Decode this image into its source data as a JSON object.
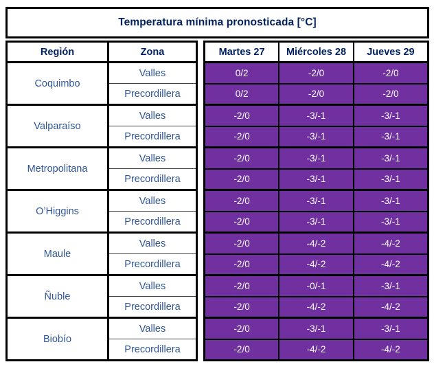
{
  "title": "Temperatura mínima pronosticada [°C]",
  "headers": {
    "region": "Región",
    "zona": "Zona",
    "days": [
      "Martes 27",
      "Miércoles 28",
      "Jueves 29"
    ]
  },
  "rows": [
    {
      "region": "Coquimbo",
      "zones": [
        {
          "zona": "Valles",
          "values": [
            "0/2",
            "-2/0",
            "-2/0"
          ]
        },
        {
          "zona": "Precordillera",
          "values": [
            "0/2",
            "-2/0",
            "-2/0"
          ]
        }
      ]
    },
    {
      "region": "Valparaíso",
      "zones": [
        {
          "zona": "Valles",
          "values": [
            "-2/0",
            "-3/-1",
            "-3/-1"
          ]
        },
        {
          "zona": "Precordillera",
          "values": [
            "-2/0",
            "-3/-1",
            "-3/-1"
          ]
        }
      ]
    },
    {
      "region": "Metropolitana",
      "zones": [
        {
          "zona": "Valles",
          "values": [
            "-2/0",
            "-3/-1",
            "-3/-1"
          ]
        },
        {
          "zona": "Precordillera",
          "values": [
            "-2/0",
            "-3/-1",
            "-3/-1"
          ]
        }
      ]
    },
    {
      "region": "O’Higgins",
      "zones": [
        {
          "zona": "Valles",
          "values": [
            "-2/0",
            "-3/-1",
            "-3/-1"
          ]
        },
        {
          "zona": "Precordillera",
          "values": [
            "-2/0",
            "-3/-1",
            "-3/-1"
          ]
        }
      ]
    },
    {
      "region": "Maule",
      "zones": [
        {
          "zona": "Valles",
          "values": [
            "-2/0",
            "-4/-2",
            "-4/-2"
          ]
        },
        {
          "zona": "Precordillera",
          "values": [
            "-2/0",
            "-4/-2",
            "-4/-2"
          ]
        }
      ]
    },
    {
      "region": "Ñuble",
      "zones": [
        {
          "zona": "Valles",
          "values": [
            "-2/0",
            "-0/-1",
            "-3/-1"
          ]
        },
        {
          "zona": "Precordillera",
          "values": [
            "-2/0",
            "-4/-2",
            "-4/-2"
          ]
        }
      ]
    },
    {
      "region": "Biobío",
      "zones": [
        {
          "zona": "Valles",
          "values": [
            "-2/0",
            "-3/-1",
            "-3/-1"
          ]
        },
        {
          "zona": "Precordillera",
          "values": [
            "-2/0",
            "-4/-2",
            "-4/-2"
          ]
        }
      ]
    }
  ],
  "colors": {
    "cell_fill": "#7030A0",
    "title_text": "#00205F",
    "label_text": "#2F5597",
    "value_text": "#FFFFFF",
    "border": "#000000"
  },
  "chart_data": {
    "type": "table",
    "title": "Temperatura mínima pronosticada [°C]",
    "columns": [
      "Región",
      "Zona",
      "Martes 27",
      "Miércoles 28",
      "Jueves 29"
    ],
    "rows": [
      [
        "Coquimbo",
        "Valles",
        "0/2",
        "-2/0",
        "-2/0"
      ],
      [
        "Coquimbo",
        "Precordillera",
        "0/2",
        "-2/0",
        "-2/0"
      ],
      [
        "Valparaíso",
        "Valles",
        "-2/0",
        "-3/-1",
        "-3/-1"
      ],
      [
        "Valparaíso",
        "Precordillera",
        "-2/0",
        "-3/-1",
        "-3/-1"
      ],
      [
        "Metropolitana",
        "Valles",
        "-2/0",
        "-3/-1",
        "-3/-1"
      ],
      [
        "Metropolitana",
        "Precordillera",
        "-2/0",
        "-3/-1",
        "-3/-1"
      ],
      [
        "O’Higgins",
        "Valles",
        "-2/0",
        "-3/-1",
        "-3/-1"
      ],
      [
        "O’Higgins",
        "Precordillera",
        "-2/0",
        "-3/-1",
        "-3/-1"
      ],
      [
        "Maule",
        "Valles",
        "-2/0",
        "-4/-2",
        "-4/-2"
      ],
      [
        "Maule",
        "Precordillera",
        "-2/0",
        "-4/-2",
        "-4/-2"
      ],
      [
        "Ñuble",
        "Valles",
        "-2/0",
        "-0/-1",
        "-3/-1"
      ],
      [
        "Ñuble",
        "Precordillera",
        "-2/0",
        "-4/-2",
        "-4/-2"
      ],
      [
        "Biobío",
        "Valles",
        "-2/0",
        "-3/-1",
        "-3/-1"
      ],
      [
        "Biobío",
        "Precordillera",
        "-2/0",
        "-4/-2",
        "-4/-2"
      ]
    ]
  }
}
